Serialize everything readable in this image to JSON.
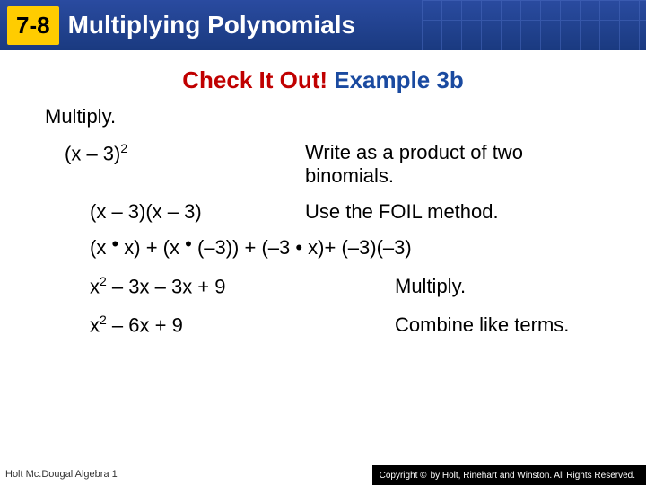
{
  "header": {
    "badge": "7-8",
    "title": "Multiplying Polynomials"
  },
  "subtitle": {
    "red": "Check It Out!",
    "blue": " Example 3b"
  },
  "instruction": "Multiply.",
  "problem": {
    "expr_html": "(x – 3)<sup>2</sup>",
    "hint": "Write as a product of two binomials."
  },
  "step1": {
    "expr": "(x – 3)(x – 3)",
    "hint": "Use the FOIL method."
  },
  "foil": {
    "expr_html": "(x<span class='dot'>&nbsp;•&nbsp;</span>x) + (x<span class='dot'>&nbsp;•&nbsp;</span>(–3)) + (–3 • x)+ (–3)(–3)"
  },
  "step2": {
    "expr_html": "x<sup>2</sup> – 3x – 3x + 9",
    "hint": "Multiply."
  },
  "step3": {
    "expr_html": "x<sup>2</sup> – 6x + 9",
    "hint": "Combine like terms."
  },
  "footer": {
    "left": "Holt Mc.Dougal Algebra 1",
    "right": "by Holt, Rinehart and Winston. All Rights Reserved.",
    "copyright": "Copyright ©"
  },
  "colors": {
    "header_bg_top": "#2a4ba0",
    "header_bg_bottom": "#1a3a80",
    "badge_bg": "#ffcc00",
    "red": "#c00000",
    "blue": "#1a4aa0",
    "text": "#000000"
  }
}
